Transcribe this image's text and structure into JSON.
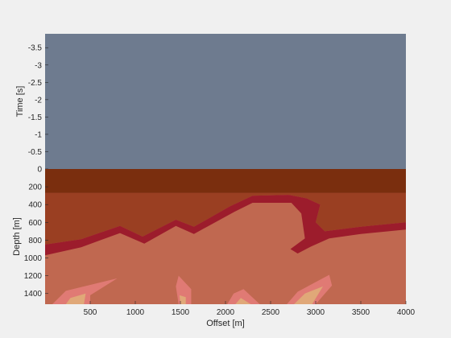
{
  "chart_data": [
    {
      "type": "area",
      "panel": "time",
      "ylabel": "Time [s]",
      "ylim": [
        -3.9,
        0
      ],
      "y_reversed": true,
      "yticks": [
        -3.5,
        -3,
        -2.5,
        -2,
        -1.5,
        -1,
        -0.5,
        0
      ],
      "yticklabels": [
        "-3.5",
        "-3",
        "-2.5",
        "-2",
        "-1.5",
        "-1",
        "-0.5",
        "0"
      ],
      "xlim": [
        0,
        4000
      ],
      "fill_color": "#6e7b8f"
    },
    {
      "type": "heatmap",
      "panel": "depth",
      "xlabel": "Offset [m]",
      "ylabel": "Depth [m]",
      "xlim": [
        0,
        4000
      ],
      "ylim": [
        0,
        1520
      ],
      "y_reversed": true,
      "xticks": [
        500,
        1000,
        1500,
        2000,
        2500,
        3000,
        3500,
        4000
      ],
      "xticklabels": [
        "500",
        "1000",
        "1500",
        "2000",
        "2500",
        "3000",
        "3500",
        "4000"
      ],
      "yticks": [
        200,
        400,
        600,
        800,
        1000,
        1200,
        1400
      ],
      "yticklabels": [
        "200",
        "400",
        "600",
        "800",
        "1000",
        "1200",
        "1400"
      ],
      "colors": {
        "top_layer": "#7a2e0e",
        "second_layer": "#9a3f22",
        "horizon": "#9c1c2c",
        "lower_body": "#c06850",
        "lower_light": "#c8785c",
        "anomaly_outer": "#e07a74",
        "anomaly_inner": "#e0a878"
      },
      "layer_boundary_depth": 270,
      "horizon_top": [
        {
          "x": 0,
          "y": 850
        },
        {
          "x": 400,
          "y": 790
        },
        {
          "x": 830,
          "y": 640
        },
        {
          "x": 1080,
          "y": 760
        },
        {
          "x": 1450,
          "y": 570
        },
        {
          "x": 1650,
          "y": 650
        },
        {
          "x": 2050,
          "y": 420
        },
        {
          "x": 2300,
          "y": 300
        },
        {
          "x": 2700,
          "y": 290
        },
        {
          "x": 2900,
          "y": 330
        },
        {
          "x": 3050,
          "y": 400
        },
        {
          "x": 3000,
          "y": 600
        },
        {
          "x": 3100,
          "y": 700
        },
        {
          "x": 3500,
          "y": 650
        },
        {
          "x": 4000,
          "y": 600
        }
      ],
      "horizon_bottom": [
        {
          "x": 4000,
          "y": 680
        },
        {
          "x": 3500,
          "y": 730
        },
        {
          "x": 3150,
          "y": 780
        },
        {
          "x": 2950,
          "y": 870
        },
        {
          "x": 2800,
          "y": 950
        },
        {
          "x": 2720,
          "y": 900
        },
        {
          "x": 2880,
          "y": 780
        },
        {
          "x": 2840,
          "y": 500
        },
        {
          "x": 2730,
          "y": 380
        },
        {
          "x": 2300,
          "y": 380
        },
        {
          "x": 2100,
          "y": 480
        },
        {
          "x": 1650,
          "y": 730
        },
        {
          "x": 1450,
          "y": 640
        },
        {
          "x": 1100,
          "y": 840
        },
        {
          "x": 830,
          "y": 720
        },
        {
          "x": 400,
          "y": 880
        },
        {
          "x": 0,
          "y": 970
        }
      ],
      "anomalies": [
        {
          "outer": [
            {
              "x": 80,
              "y": 1520
            },
            {
              "x": 230,
              "y": 1370
            },
            {
              "x": 800,
              "y": 1230
            },
            {
              "x": 500,
              "y": 1420
            },
            {
              "x": 500,
              "y": 1520
            }
          ],
          "inner": [
            {
              "x": 230,
              "y": 1520
            },
            {
              "x": 280,
              "y": 1450
            },
            {
              "x": 450,
              "y": 1400
            },
            {
              "x": 430,
              "y": 1520
            }
          ]
        },
        {
          "outer": [
            {
              "x": 1480,
              "y": 1520
            },
            {
              "x": 1450,
              "y": 1320
            },
            {
              "x": 1480,
              "y": 1200
            },
            {
              "x": 1620,
              "y": 1350
            },
            {
              "x": 1620,
              "y": 1520
            }
          ],
          "inner": [
            {
              "x": 1500,
              "y": 1520
            },
            {
              "x": 1490,
              "y": 1420
            },
            {
              "x": 1560,
              "y": 1440
            },
            {
              "x": 1560,
              "y": 1520
            }
          ]
        },
        {
          "outer": [
            {
              "x": 2020,
              "y": 1520
            },
            {
              "x": 2090,
              "y": 1400
            },
            {
              "x": 2200,
              "y": 1350
            },
            {
              "x": 2380,
              "y": 1520
            }
          ],
          "inner": [
            {
              "x": 2110,
              "y": 1520
            },
            {
              "x": 2170,
              "y": 1450
            },
            {
              "x": 2280,
              "y": 1520
            }
          ]
        },
        {
          "outer": [
            {
              "x": 2680,
              "y": 1520
            },
            {
              "x": 2800,
              "y": 1380
            },
            {
              "x": 3150,
              "y": 1190
            },
            {
              "x": 3180,
              "y": 1310
            },
            {
              "x": 3000,
              "y": 1520
            }
          ],
          "inner": [
            {
              "x": 2760,
              "y": 1520
            },
            {
              "x": 2880,
              "y": 1400
            },
            {
              "x": 3080,
              "y": 1320
            },
            {
              "x": 2960,
              "y": 1520
            }
          ]
        }
      ]
    }
  ]
}
